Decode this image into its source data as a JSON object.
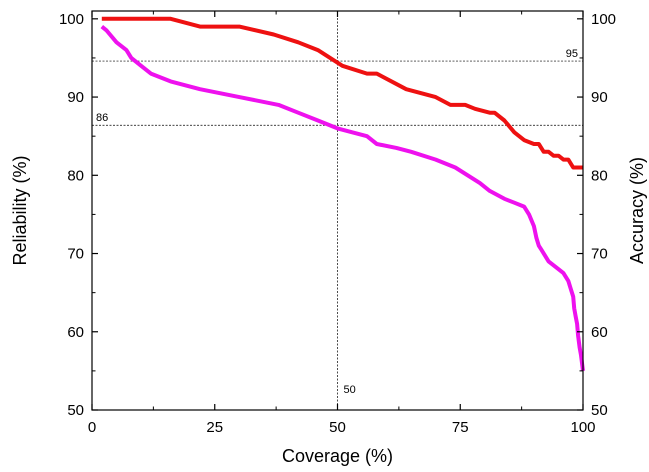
{
  "chart_data": {
    "type": "line",
    "title": "",
    "xlabel": "Coverage (%)",
    "ylabel": "Reliability (%)",
    "y2label": "Accuracy (%)",
    "xlim": [
      0,
      100
    ],
    "ylim": [
      50,
      101
    ],
    "x_ticks": [
      0,
      25,
      50,
      75,
      100
    ],
    "y_ticks": [
      50,
      60,
      70,
      80,
      90,
      100
    ],
    "grid": false,
    "series": [
      {
        "color": "#ee1111",
        "axis": "left",
        "x": [
          2,
          16,
          22,
          30,
          37,
          42,
          46,
          51,
          56,
          58,
          64,
          70,
          73,
          76,
          78,
          81,
          82,
          84,
          86,
          88,
          90,
          91,
          92,
          93,
          94,
          95,
          96,
          97,
          98,
          99,
          100
        ],
        "y": [
          100,
          100,
          99,
          99,
          98,
          97,
          96,
          94,
          93,
          93,
          91,
          90,
          89,
          89,
          88.5,
          88,
          88,
          87,
          85.5,
          84.5,
          84,
          84,
          83,
          83,
          82.5,
          82.5,
          82,
          82,
          81,
          81,
          81
        ]
      },
      {
        "color": "#ee11ee",
        "axis": "right",
        "x": [
          2,
          3,
          5,
          7,
          8,
          10,
          12,
          16,
          22,
          30,
          38,
          42,
          46,
          50,
          53,
          56,
          58,
          62,
          65,
          70,
          74,
          79,
          81,
          84,
          86,
          88,
          89,
          90,
          90.5,
          91,
          91.5,
          93,
          95,
          96,
          97,
          97.5,
          98,
          98.2,
          98.5,
          98.8,
          99,
          99.3,
          99.6,
          100
        ],
        "y": [
          99,
          98.5,
          97,
          96,
          95,
          94,
          93,
          92,
          91,
          90,
          89,
          88,
          87,
          86,
          85.5,
          85,
          84,
          83.5,
          83,
          82,
          81,
          79,
          78,
          77,
          76.5,
          76,
          75,
          73.5,
          72,
          71,
          70.5,
          69,
          68,
          67.5,
          66.5,
          65.5,
          64.5,
          63,
          62,
          61,
          59.5,
          58,
          57,
          55
        ]
      }
    ],
    "reference_lines": [
      {
        "orientation": "horizontal",
        "value": 94.6,
        "label": "95",
        "label_side": "right"
      },
      {
        "orientation": "horizontal",
        "value": 86.4,
        "label": "86",
        "label_side": "left"
      },
      {
        "orientation": "vertical",
        "value": 50,
        "label": "50",
        "label_side": "bottom"
      }
    ]
  }
}
